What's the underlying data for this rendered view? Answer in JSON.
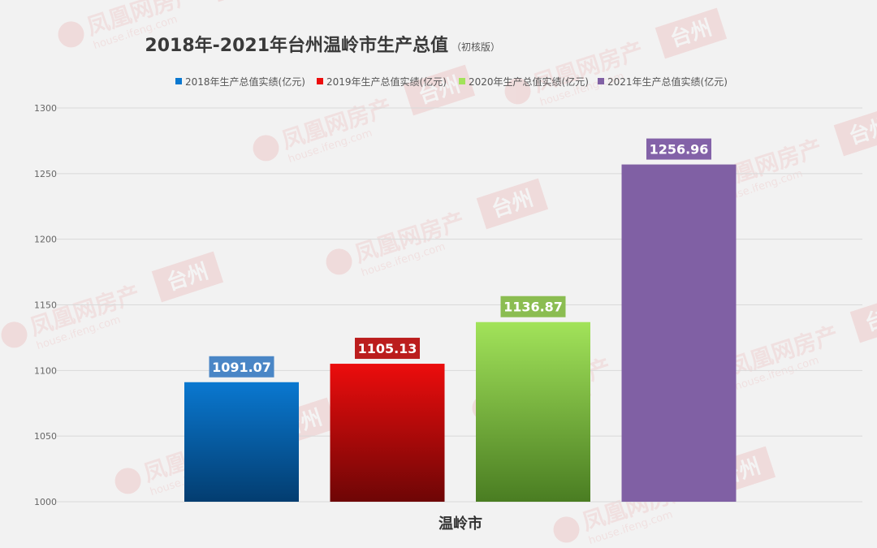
{
  "chart_data": {
    "type": "bar",
    "title": "2018年-2021年台州温岭市生产总值",
    "subtitle": "（初核版）",
    "xlabel": "温岭市",
    "categories": [
      "温岭市"
    ],
    "series": [
      {
        "name": "2018年生产总值实绩(亿元)",
        "values": [
          1091.07
        ],
        "label": "1091.07",
        "color_top": "#0a78d0",
        "color_bottom": "#033d70",
        "label_bg": "#4a86c6"
      },
      {
        "name": "2019年生产总值实绩(亿元)",
        "values": [
          1105.13
        ],
        "label": "1105.13",
        "color_top": "#ec0d0d",
        "color_bottom": "#6e0606",
        "label_bg": "#bb1d1d"
      },
      {
        "name": "2020年生产总值实绩(亿元)",
        "values": [
          1136.87
        ],
        "label": "1136.87",
        "color_top": "#a2e35a",
        "color_bottom": "#4a7d22",
        "label_bg": "#8bbd51"
      },
      {
        "name": "2021年生产总值实绩(亿元)",
        "values": [
          1256.96
        ],
        "label": "1256.96",
        "color_top": "#8060a4",
        "color_bottom": "#8060a4",
        "label_bg": "#8362a8"
      }
    ],
    "ylim": [
      1000,
      1300
    ],
    "yticks": [
      1000,
      1050,
      1100,
      1150,
      1200,
      1250,
      1300
    ],
    "grid": true,
    "legend": "top"
  },
  "watermark": {
    "brand": "凤凰网房产",
    "city": "台州",
    "url": "house.ifeng.com"
  }
}
